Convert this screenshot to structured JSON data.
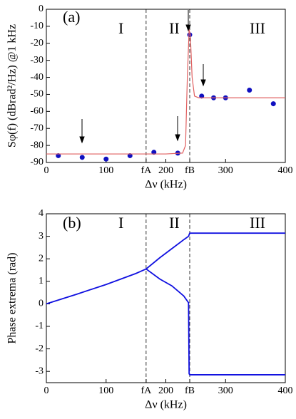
{
  "chart_data": [
    {
      "type": "scatter",
      "annotations": [
        "(a)",
        "I",
        "II",
        "III"
      ],
      "ylabel": "Sφ(f) (dBrad²/Hz) @1 kHz",
      "xlabel": "Δν (kHz)",
      "xlim": [
        0,
        400
      ],
      "ylim": [
        -90,
        0
      ],
      "xticks": [
        0,
        100,
        {
          "value": 167,
          "label": "fA"
        },
        200,
        {
          "value": 240,
          "label": "fB"
        },
        300,
        400
      ],
      "yticks": [
        0,
        -10,
        -20,
        -30,
        -40,
        -50,
        -60,
        -70,
        -80,
        -90
      ],
      "series": [
        {
          "type": "scatter",
          "color": "#1010c0",
          "x": [
            20,
            60,
            100,
            140,
            180,
            220,
            240,
            260,
            280,
            300,
            340,
            380
          ],
          "values": [
            -86,
            -87,
            -88,
            -86,
            -84,
            -84.5,
            -15,
            -51,
            -52,
            -52,
            -47.5,
            -55.5
          ]
        },
        {
          "type": "line",
          "color": "#e06060",
          "x": [
            0,
            50,
            100,
            150,
            200,
            228,
            233,
            236,
            239,
            241,
            244,
            248,
            255,
            270,
            300,
            350,
            400
          ],
          "values": [
            -85,
            -85,
            -85,
            -85,
            -85,
            -84.5,
            -80,
            -40,
            -12,
            -15,
            -40,
            -51,
            -52,
            -52,
            -52,
            -52,
            -52
          ]
        }
      ]
    },
    {
      "type": "line",
      "annotations": [
        "(b)",
        "I",
        "II",
        "III"
      ],
      "ylabel": "Phase extrema (rad)",
      "xlabel": "Δν (kHz)",
      "xlim": [
        0,
        400
      ],
      "ylim": [
        -3.5,
        4
      ],
      "xticks": [
        0,
        100,
        {
          "value": 167,
          "label": "fA"
        },
        200,
        {
          "value": 240,
          "label": "fB"
        },
        300,
        400
      ],
      "yticks": [
        4,
        3,
        2,
        1,
        0,
        -1,
        -2,
        -3
      ],
      "series": [
        {
          "type": "line",
          "color": "#1010e0",
          "x": [
            0,
            50,
            100,
            150,
            167,
            190,
            210,
            230,
            238,
            240,
            400
          ],
          "values": [
            0,
            0.42,
            0.86,
            1.35,
            1.55,
            2.05,
            2.45,
            2.85,
            3.0,
            3.14,
            3.14
          ]
        },
        {
          "type": "line",
          "color": "#1010e0",
          "x": [
            167,
            190,
            210,
            230,
            238,
            239,
            240,
            400
          ],
          "values": [
            1.55,
            1.1,
            0.8,
            0.35,
            0.05,
            -3.1,
            -3.15,
            -3.15
          ]
        }
      ]
    }
  ]
}
